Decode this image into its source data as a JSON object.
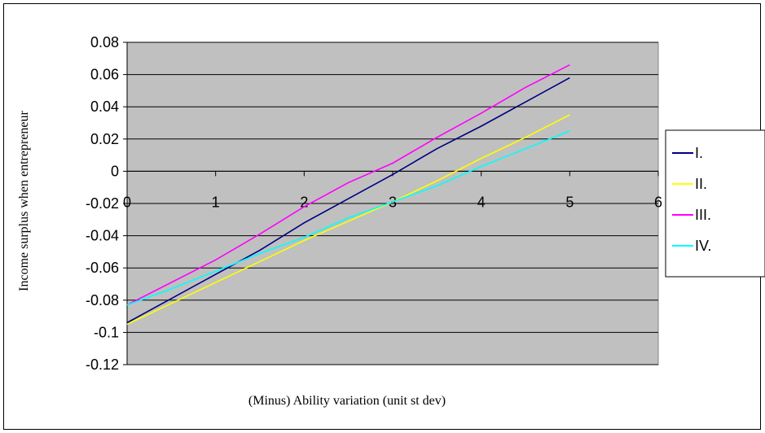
{
  "chart_data": {
    "type": "line",
    "title": "",
    "xlabel": "(Minus) Ability variation (unit st dev)",
    "ylabel": "Income surplus when entrepreneur",
    "xlim": [
      0,
      6
    ],
    "ylim": [
      -0.12,
      0.08
    ],
    "x_ticks": [
      "0",
      "1",
      "2",
      "3",
      "4",
      "5",
      "6"
    ],
    "y_ticks": [
      "0.08",
      "0.06",
      "0.04",
      "0.02",
      "0",
      "-0.02",
      "-0.04",
      "-0.06",
      "-0.08",
      "-0.1",
      "-0.12"
    ],
    "grid": "horizontal",
    "plot_background": "#c0c0c0",
    "legend_position": "right",
    "x": [
      0,
      0.5,
      1,
      1.5,
      2,
      2.5,
      3,
      3.5,
      4,
      4.5,
      5
    ],
    "series": [
      {
        "name": "I.",
        "color": "#000080",
        "values": [
          -0.094,
          -0.079,
          -0.064,
          -0.049,
          -0.032,
          -0.017,
          -0.002,
          0.014,
          0.028,
          0.043,
          0.058
        ]
      },
      {
        "name": "II.",
        "color": "#ffff00",
        "values": [
          -0.095,
          -0.082,
          -0.069,
          -0.056,
          -0.043,
          -0.031,
          -0.019,
          -0.006,
          0.008,
          0.021,
          0.035
        ]
      },
      {
        "name": "III.",
        "color": "#ff00ff",
        "values": [
          -0.083,
          -0.069,
          -0.055,
          -0.039,
          -0.022,
          -0.007,
          0.005,
          0.021,
          0.036,
          0.052,
          0.066
        ]
      },
      {
        "name": "IV.",
        "color": "#00ffff",
        "values": [
          -0.083,
          -0.073,
          -0.062,
          -0.051,
          -0.041,
          -0.029,
          -0.019,
          -0.009,
          0.003,
          0.014,
          0.025
        ]
      }
    ]
  }
}
